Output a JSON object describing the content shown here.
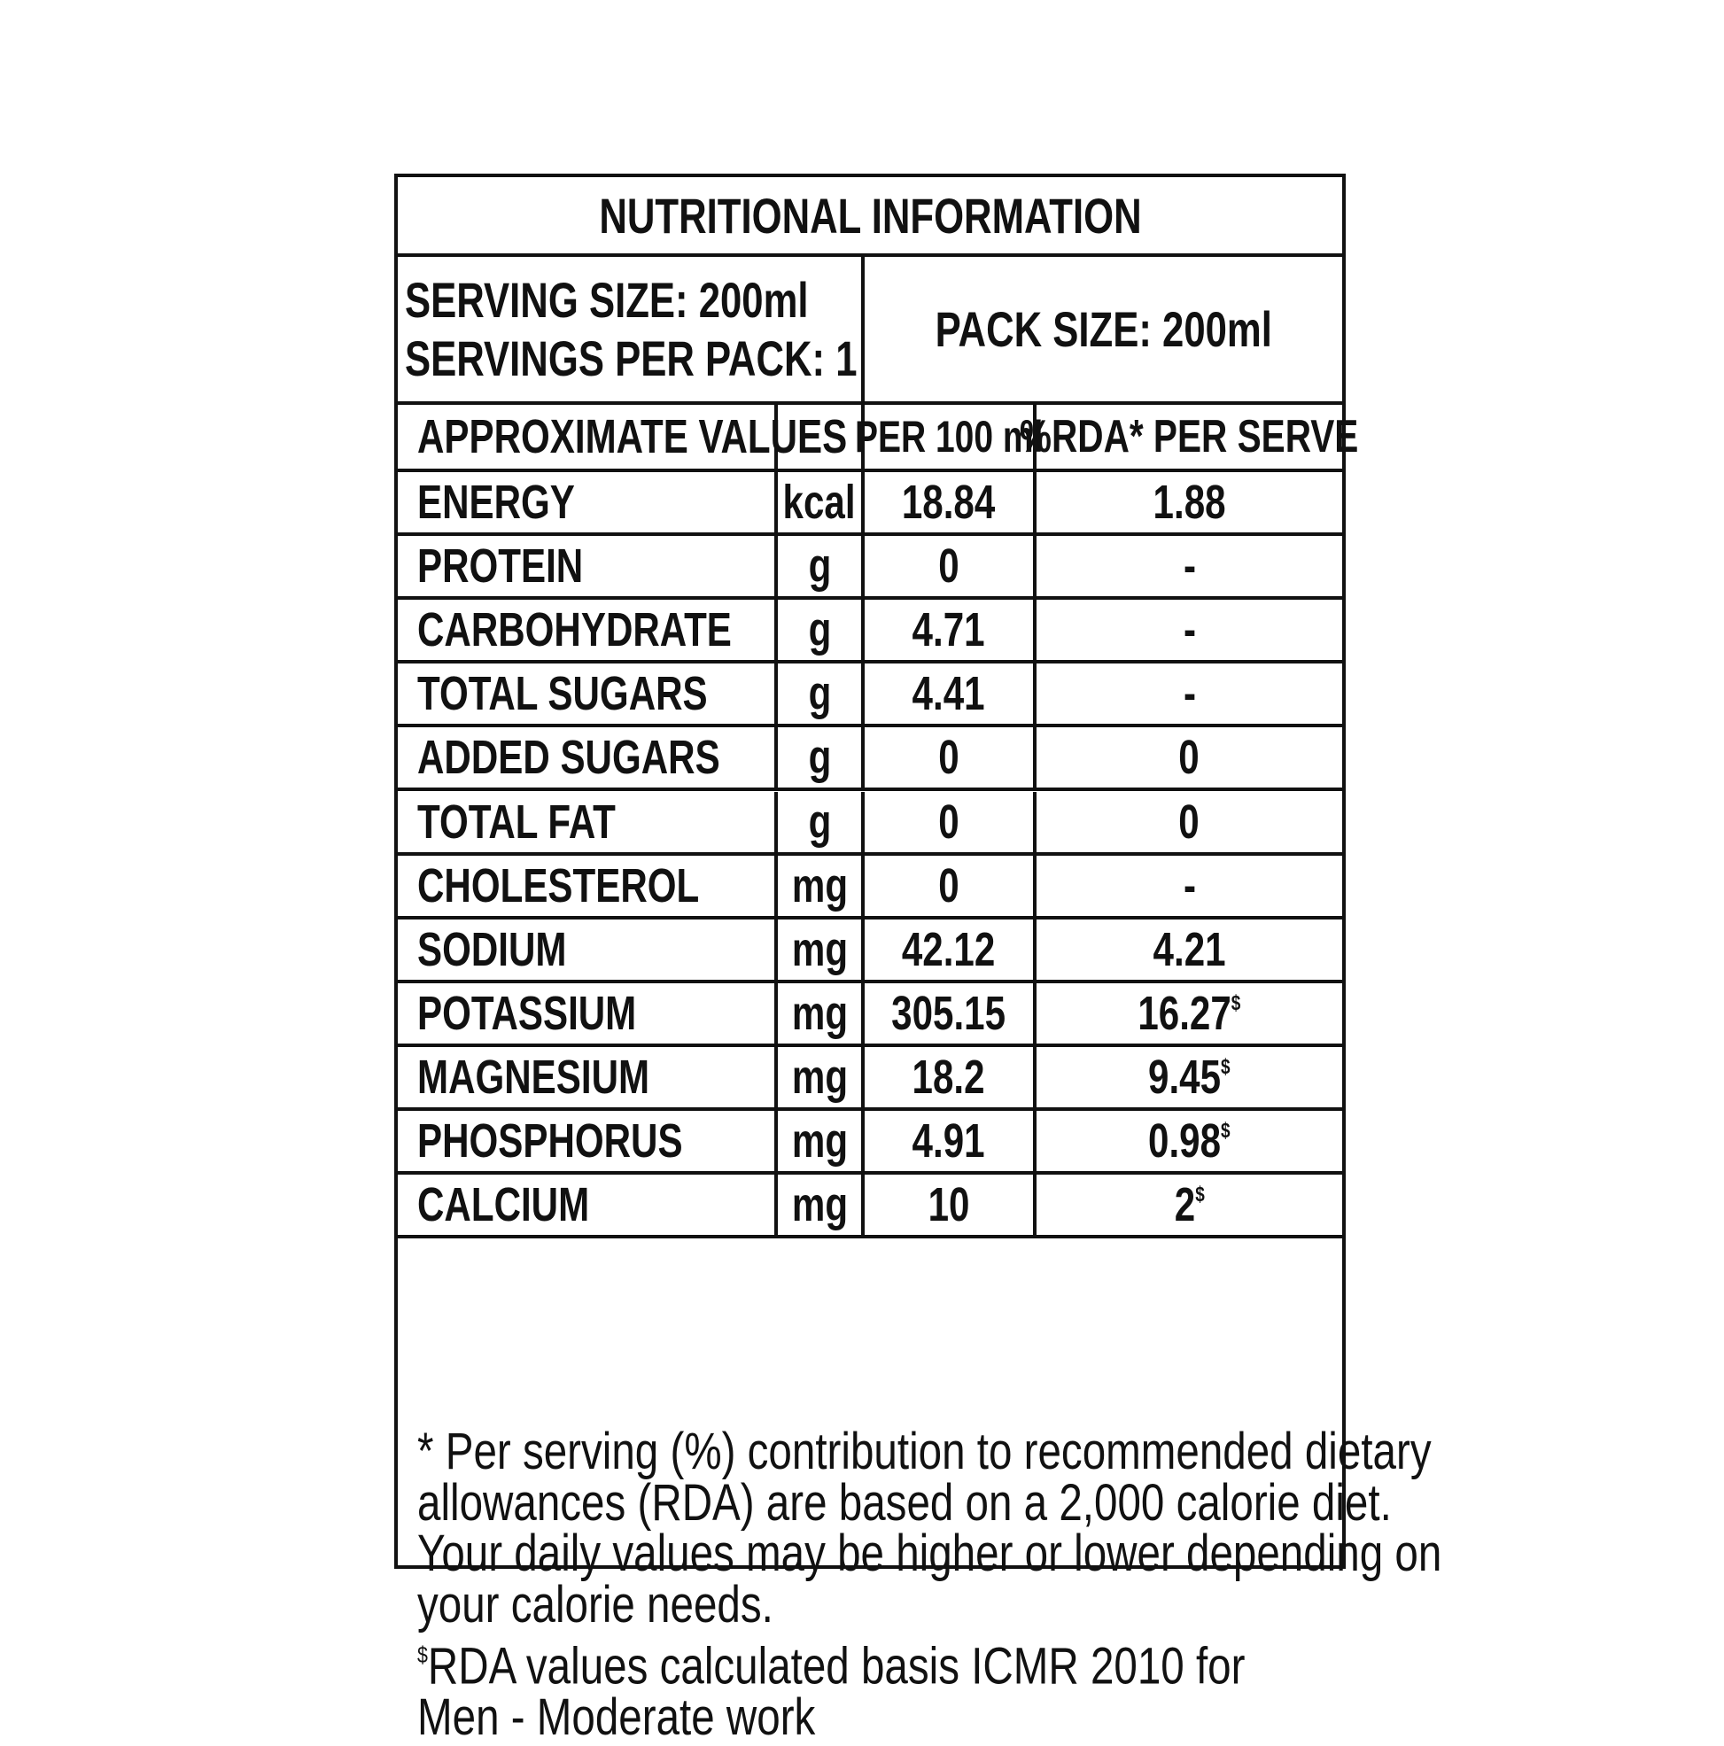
{
  "title": "NUTRITIONAL INFORMATION",
  "serving_size": "SERVING SIZE: 200ml",
  "servings_per_pack": "SERVINGS PER PACK: 1",
  "pack_size": "PACK SIZE: 200ml",
  "headers": {
    "name": "APPROXIMATE VALUES",
    "unit": "",
    "per100": "PER 100 ml",
    "rda": "%RDA* PER SERVE"
  },
  "rows": [
    {
      "name": "ENERGY",
      "unit": "kcal",
      "per100": "18.84",
      "rda": "1.88",
      "mark": ""
    },
    {
      "name": "PROTEIN",
      "unit": "g",
      "per100": "0",
      "rda": "-",
      "mark": ""
    },
    {
      "name": "CARBOHYDRATE",
      "unit": "g",
      "per100": "4.71",
      "rda": "-",
      "mark": ""
    },
    {
      "name": "TOTAL SUGARS",
      "unit": "g",
      "per100": "4.41",
      "rda": "-",
      "mark": ""
    },
    {
      "name": "ADDED SUGARS",
      "unit": "g",
      "per100": "0",
      "rda": "0",
      "mark": ""
    },
    {
      "name": "TOTAL FAT",
      "unit": "g",
      "per100": "0",
      "rda": "0",
      "mark": ""
    },
    {
      "name": "CHOLESTEROL",
      "unit": "mg",
      "per100": "0",
      "rda": "-",
      "mark": ""
    },
    {
      "name": "SODIUM",
      "unit": "mg",
      "per100": "42.12",
      "rda": "4.21",
      "mark": ""
    },
    {
      "name": "POTASSIUM",
      "unit": "mg",
      "per100": "305.15",
      "rda": "16.27",
      "mark": "$"
    },
    {
      "name": "MAGNESIUM",
      "unit": "mg",
      "per100": "18.2",
      "rda": "9.45",
      "mark": "$"
    },
    {
      "name": "PHOSPHORUS",
      "unit": "mg",
      "per100": "4.91",
      "rda": "0.98",
      "mark": "$"
    },
    {
      "name": "CALCIUM",
      "unit": "mg",
      "per100": "10",
      "rda": "2",
      "mark": "$"
    }
  ],
  "footnote": {
    "lines": [
      "* Per serving (%) contribution to recommended dietary",
      "allowances (RDA) are based on a 2,000 calorie diet.",
      "Your daily values may be higher or lower depending on",
      "your calorie needs."
    ],
    "rda_mark": "$",
    "rda_line1": "RDA values calculated basis ICMR 2010 for",
    "rda_line2": "Men - Moderate work"
  }
}
